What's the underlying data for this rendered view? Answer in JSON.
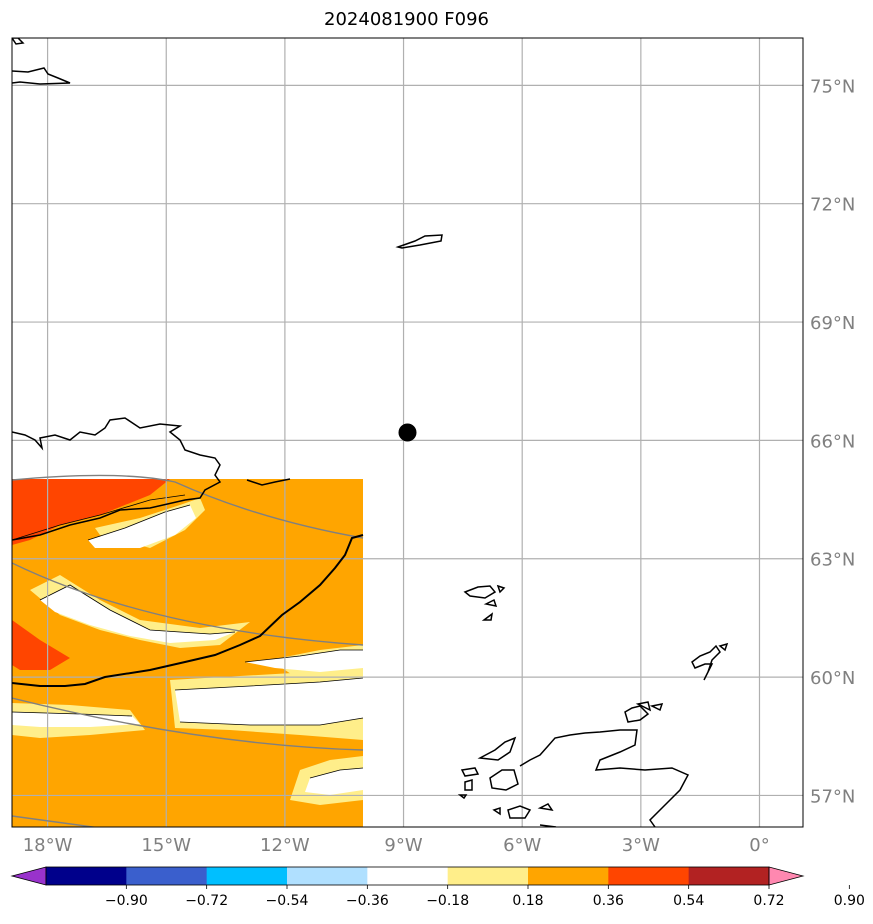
{
  "title": "2024081900 F096",
  "chart_data": {
    "type": "map-contour",
    "title": "2024081900 F096",
    "longitude_ticks": [
      {
        "value": -18,
        "label": "18°W"
      },
      {
        "value": -15,
        "label": "15°W"
      },
      {
        "value": -12,
        "label": "12°W"
      },
      {
        "value": -9,
        "label": "9°W"
      },
      {
        "value": -6,
        "label": "6°W"
      },
      {
        "value": -3,
        "label": "3°W"
      },
      {
        "value": 0,
        "label": "0°"
      }
    ],
    "latitude_ticks": [
      {
        "value": 75,
        "label": "75°N"
      },
      {
        "value": 72,
        "label": "72°N"
      },
      {
        "value": 69,
        "label": "69°N"
      },
      {
        "value": 66,
        "label": "66°N"
      },
      {
        "value": 63,
        "label": "63°N"
      },
      {
        "value": 60,
        "label": "60°N"
      },
      {
        "value": 57,
        "label": "57°N"
      }
    ],
    "xlim": [
      -18.9,
      1.1
    ],
    "ylim": [
      56.2,
      76.2
    ],
    "grid": true,
    "marker": {
      "lon": -8.9,
      "lat": 66.2
    },
    "colorbar": {
      "levels": [
        -0.9,
        -0.72,
        -0.54,
        -0.36,
        -0.18,
        0.18,
        0.36,
        0.54,
        0.72,
        0.9
      ],
      "tick_labels": [
        "−0.90",
        "−0.72",
        "−0.54",
        "−0.36",
        "−0.18",
        "0.18",
        "0.36",
        "0.54",
        "0.72",
        "0.90"
      ],
      "colors": [
        "#9932cc",
        "#00008b",
        "#3a5fcd",
        "#00bfff",
        "#b0e0ff",
        "#ffffff",
        "#ffee8a",
        "#ffa500",
        "#ff4500",
        "#b22222",
        "#ff88b0"
      ],
      "extend": "both"
    }
  }
}
